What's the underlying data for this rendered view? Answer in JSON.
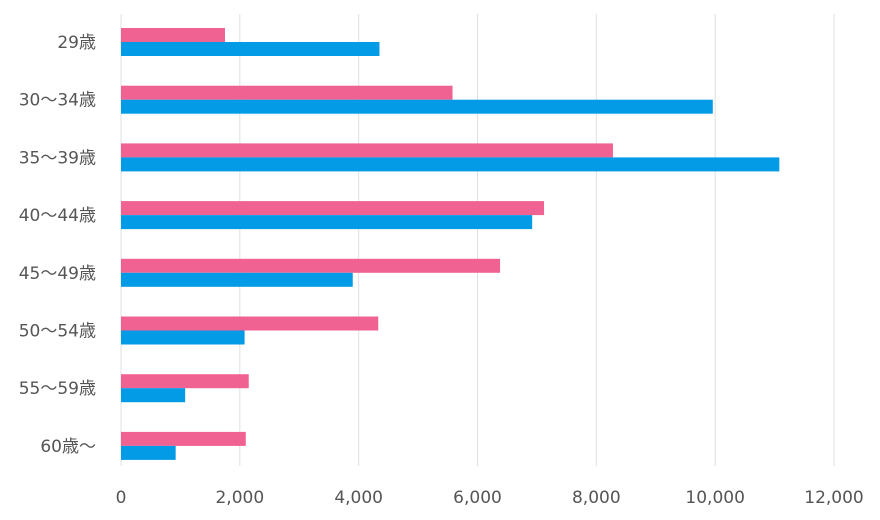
{
  "chart_data": {
    "type": "bar",
    "orientation": "horizontal",
    "categories": [
      "29歳",
      "30〜34歳",
      "35〜39歳",
      "40〜44歳",
      "45〜49歳",
      "50〜54歳",
      "55〜59歳",
      "60歳〜"
    ],
    "series": [
      {
        "values": [
          1750,
          5580,
          8280,
          7120,
          6380,
          4330,
          2150,
          2100
        ],
        "color": "#f06292"
      },
      {
        "values": [
          4350,
          9960,
          11080,
          6920,
          3900,
          2080,
          1080,
          920
        ],
        "color": "#039be5"
      }
    ],
    "xlim": [
      0,
      12000
    ],
    "x_ticks": [
      "0",
      "2,000",
      "4,000",
      "6,000",
      "8,000",
      "10,000",
      "12,000"
    ],
    "xlabel": "",
    "ylabel": "",
    "title": "",
    "grid": "vertical",
    "legend": "none",
    "gridline_color": "#e0e0e0"
  }
}
